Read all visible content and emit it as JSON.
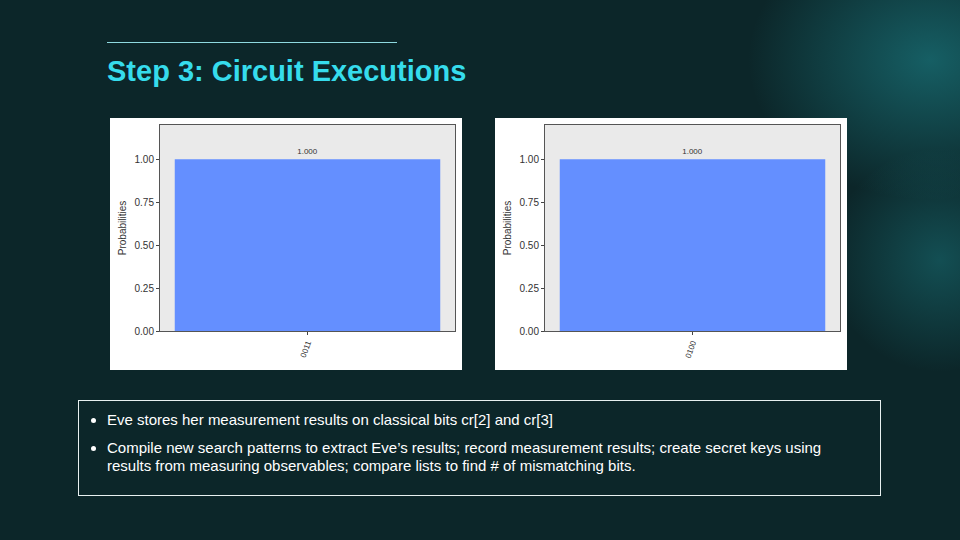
{
  "slide": {
    "title": "Step 3: Circuit Executions",
    "bullets": [
      "Eve stores her measurement results on classical bits cr[2] and cr[3]",
      "Compile new search patterns to extract Eve’s results; record measurement results; create secret keys using results from measuring observables; compare lists to find # of mismatching bits."
    ]
  },
  "chart_data": [
    {
      "type": "bar",
      "categories": [
        "0011"
      ],
      "values": [
        1.0
      ],
      "value_labels": [
        "1.000"
      ],
      "data_labels": true,
      "color": "#648fff",
      "ylabel": "Probabilities",
      "ylim": [
        0,
        1.2
      ],
      "yticks": [
        {
          "value": 0,
          "label": "0.00"
        },
        {
          "value": 0.25,
          "label": "0.25"
        },
        {
          "value": 0.5,
          "label": "0.50"
        },
        {
          "value": 0.75,
          "label": "0.75"
        },
        {
          "value": 1,
          "label": "1.00"
        }
      ],
      "grid": false
    },
    {
      "type": "bar",
      "categories": [
        "0100"
      ],
      "values": [
        1.0
      ],
      "value_labels": [
        "1.000"
      ],
      "data_labels": true,
      "color": "#648fff",
      "ylabel": "Probabilities",
      "ylim": [
        0,
        1.2
      ],
      "yticks": [
        {
          "value": 0,
          "label": "0.00"
        },
        {
          "value": 0.25,
          "label": "0.25"
        },
        {
          "value": 0.5,
          "label": "0.50"
        },
        {
          "value": 0.75,
          "label": "0.75"
        },
        {
          "value": 1,
          "label": "1.00"
        }
      ],
      "grid": false
    }
  ]
}
